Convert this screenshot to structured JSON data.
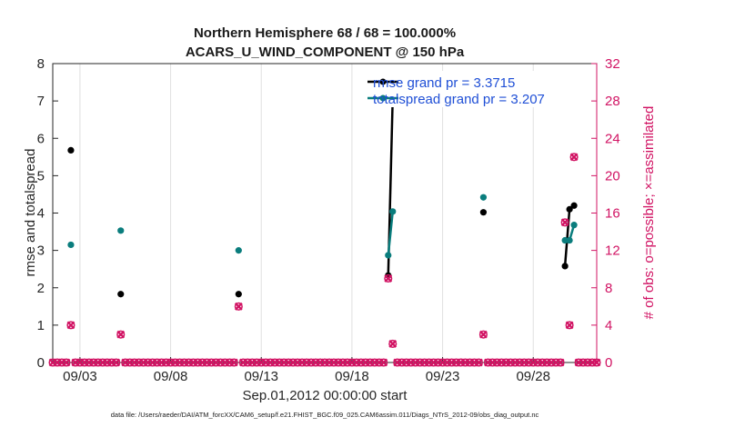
{
  "chart_data": {
    "type": "line",
    "title_line1": "Northern Hemisphere 68 / 68 = 100.000%",
    "title_line2": "ACARS_U_WIND_COMPONENT @ 150 hPa",
    "xlabel": "Sep.01,2012 00:00:00 start",
    "ylabel_left": "rmse and totalspread",
    "ylabel_right": "# of obs: o=possible; ×=assimilated",
    "xlim": [
      1.5,
      31.5
    ],
    "ylim_left": [
      0,
      8
    ],
    "ylim_right": [
      0,
      32
    ],
    "x_ticks": [
      {
        "x": 3,
        "label": "09/03"
      },
      {
        "x": 8,
        "label": "09/08"
      },
      {
        "x": 13,
        "label": "09/13"
      },
      {
        "x": 18,
        "label": "09/18"
      },
      {
        "x": 23,
        "label": "09/23"
      },
      {
        "x": 28,
        "label": "09/28"
      }
    ],
    "y_ticks_left": [
      "0",
      "1",
      "2",
      "3",
      "4",
      "5",
      "6",
      "7",
      "8"
    ],
    "y_ticks_right": [
      "0",
      "4",
      "8",
      "12",
      "16",
      "20",
      "24",
      "28",
      "32"
    ],
    "series": [
      {
        "name": "rmse",
        "legend": "rmse grand pr = 3.3715",
        "color": "#000000",
        "segments": [
          [
            [
              2.5,
              5.68
            ]
          ],
          [
            [
              5.25,
              1.83
            ]
          ],
          [
            [
              11.75,
              1.83
            ]
          ],
          [
            [
              20.0,
              2.33
            ],
            [
              20.25,
              7.1
            ]
          ],
          [
            [
              25.25,
              4.02
            ]
          ],
          [
            [
              29.75,
              2.58
            ],
            [
              30.0,
              4.1
            ],
            [
              30.25,
              4.2
            ]
          ]
        ]
      },
      {
        "name": "totalspread",
        "legend": "totalspread grand pr = 3.207",
        "color": "#0a7d7d",
        "segments": [
          [
            [
              2.5,
              3.15
            ]
          ],
          [
            [
              5.25,
              3.53
            ]
          ],
          [
            [
              11.75,
              3.0
            ]
          ],
          [
            [
              20.0,
              2.87
            ],
            [
              20.25,
              4.04
            ]
          ],
          [
            [
              25.25,
              4.42
            ]
          ],
          [
            [
              29.75,
              3.27
            ],
            [
              30.0,
              3.27
            ],
            [
              30.25,
              3.68
            ]
          ]
        ]
      }
    ],
    "obs_possible": {
      "color": "#d11363",
      "nonzero": [
        [
          2.5,
          4
        ],
        [
          5.25,
          3
        ],
        [
          11.75,
          6
        ],
        [
          20.0,
          9
        ],
        [
          20.25,
          2
        ],
        [
          25.25,
          3
        ],
        [
          29.75,
          15
        ],
        [
          30.0,
          4
        ],
        [
          30.25,
          22
        ]
      ]
    },
    "obs_assimilated": {
      "color": "#d11363",
      "nonzero": [
        [
          2.5,
          4
        ],
        [
          5.25,
          3
        ],
        [
          11.75,
          6
        ],
        [
          20.0,
          9
        ],
        [
          20.25,
          2
        ],
        [
          25.25,
          3
        ],
        [
          29.75,
          15
        ],
        [
          30.0,
          4
        ],
        [
          30.25,
          22
        ]
      ]
    },
    "zero_obs_step": 0.25
  },
  "footer": "data file: /Users/raeder/DAI/ATM_forcXX/CAM6_setup/f.e21.FHIST_BGC.f09_025.CAM6assim.011/Diags_NTrS_2012-09/obs_diag_output.nc"
}
